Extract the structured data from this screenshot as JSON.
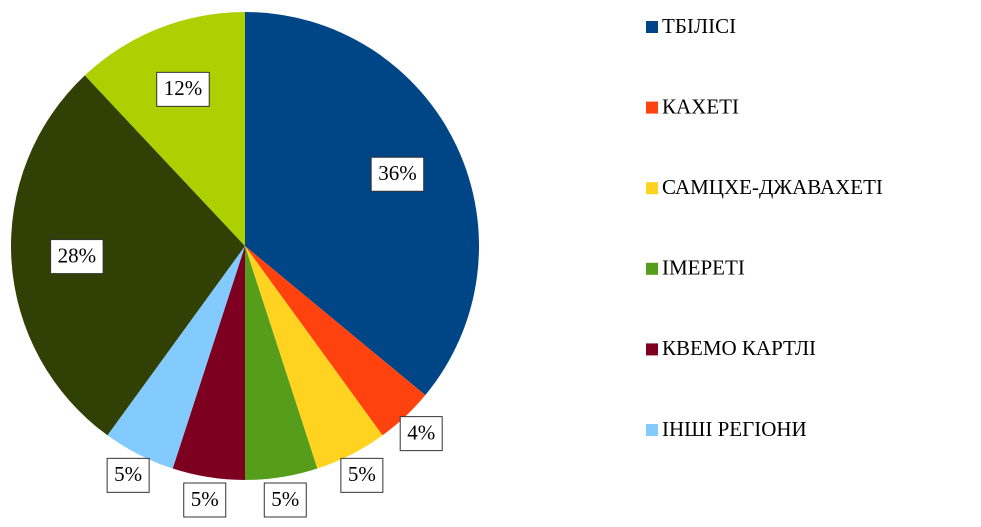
{
  "chart_data": {
    "type": "pie",
    "categories": [
      "ТБІЛІСІ",
      "КАХЕТІ",
      "САМЦХЕ-ДЖАВАХЕТІ",
      "ІМЕРЕТІ",
      "КВЕМО КАРТЛІ",
      "ІНШІ РЕГІОНИ",
      null,
      null
    ],
    "values": [
      36,
      4,
      5,
      5,
      5,
      5,
      28,
      12
    ],
    "value_labels": [
      "36%",
      "4%",
      "5%",
      "5%",
      "5%",
      "5%",
      "28%",
      "12%"
    ],
    "colors": [
      "#004586",
      "#ff420e",
      "#ffd320",
      "#579d1c",
      "#7e0021",
      "#83caff",
      "#314004",
      "#aecf00"
    ],
    "legend": "right"
  }
}
